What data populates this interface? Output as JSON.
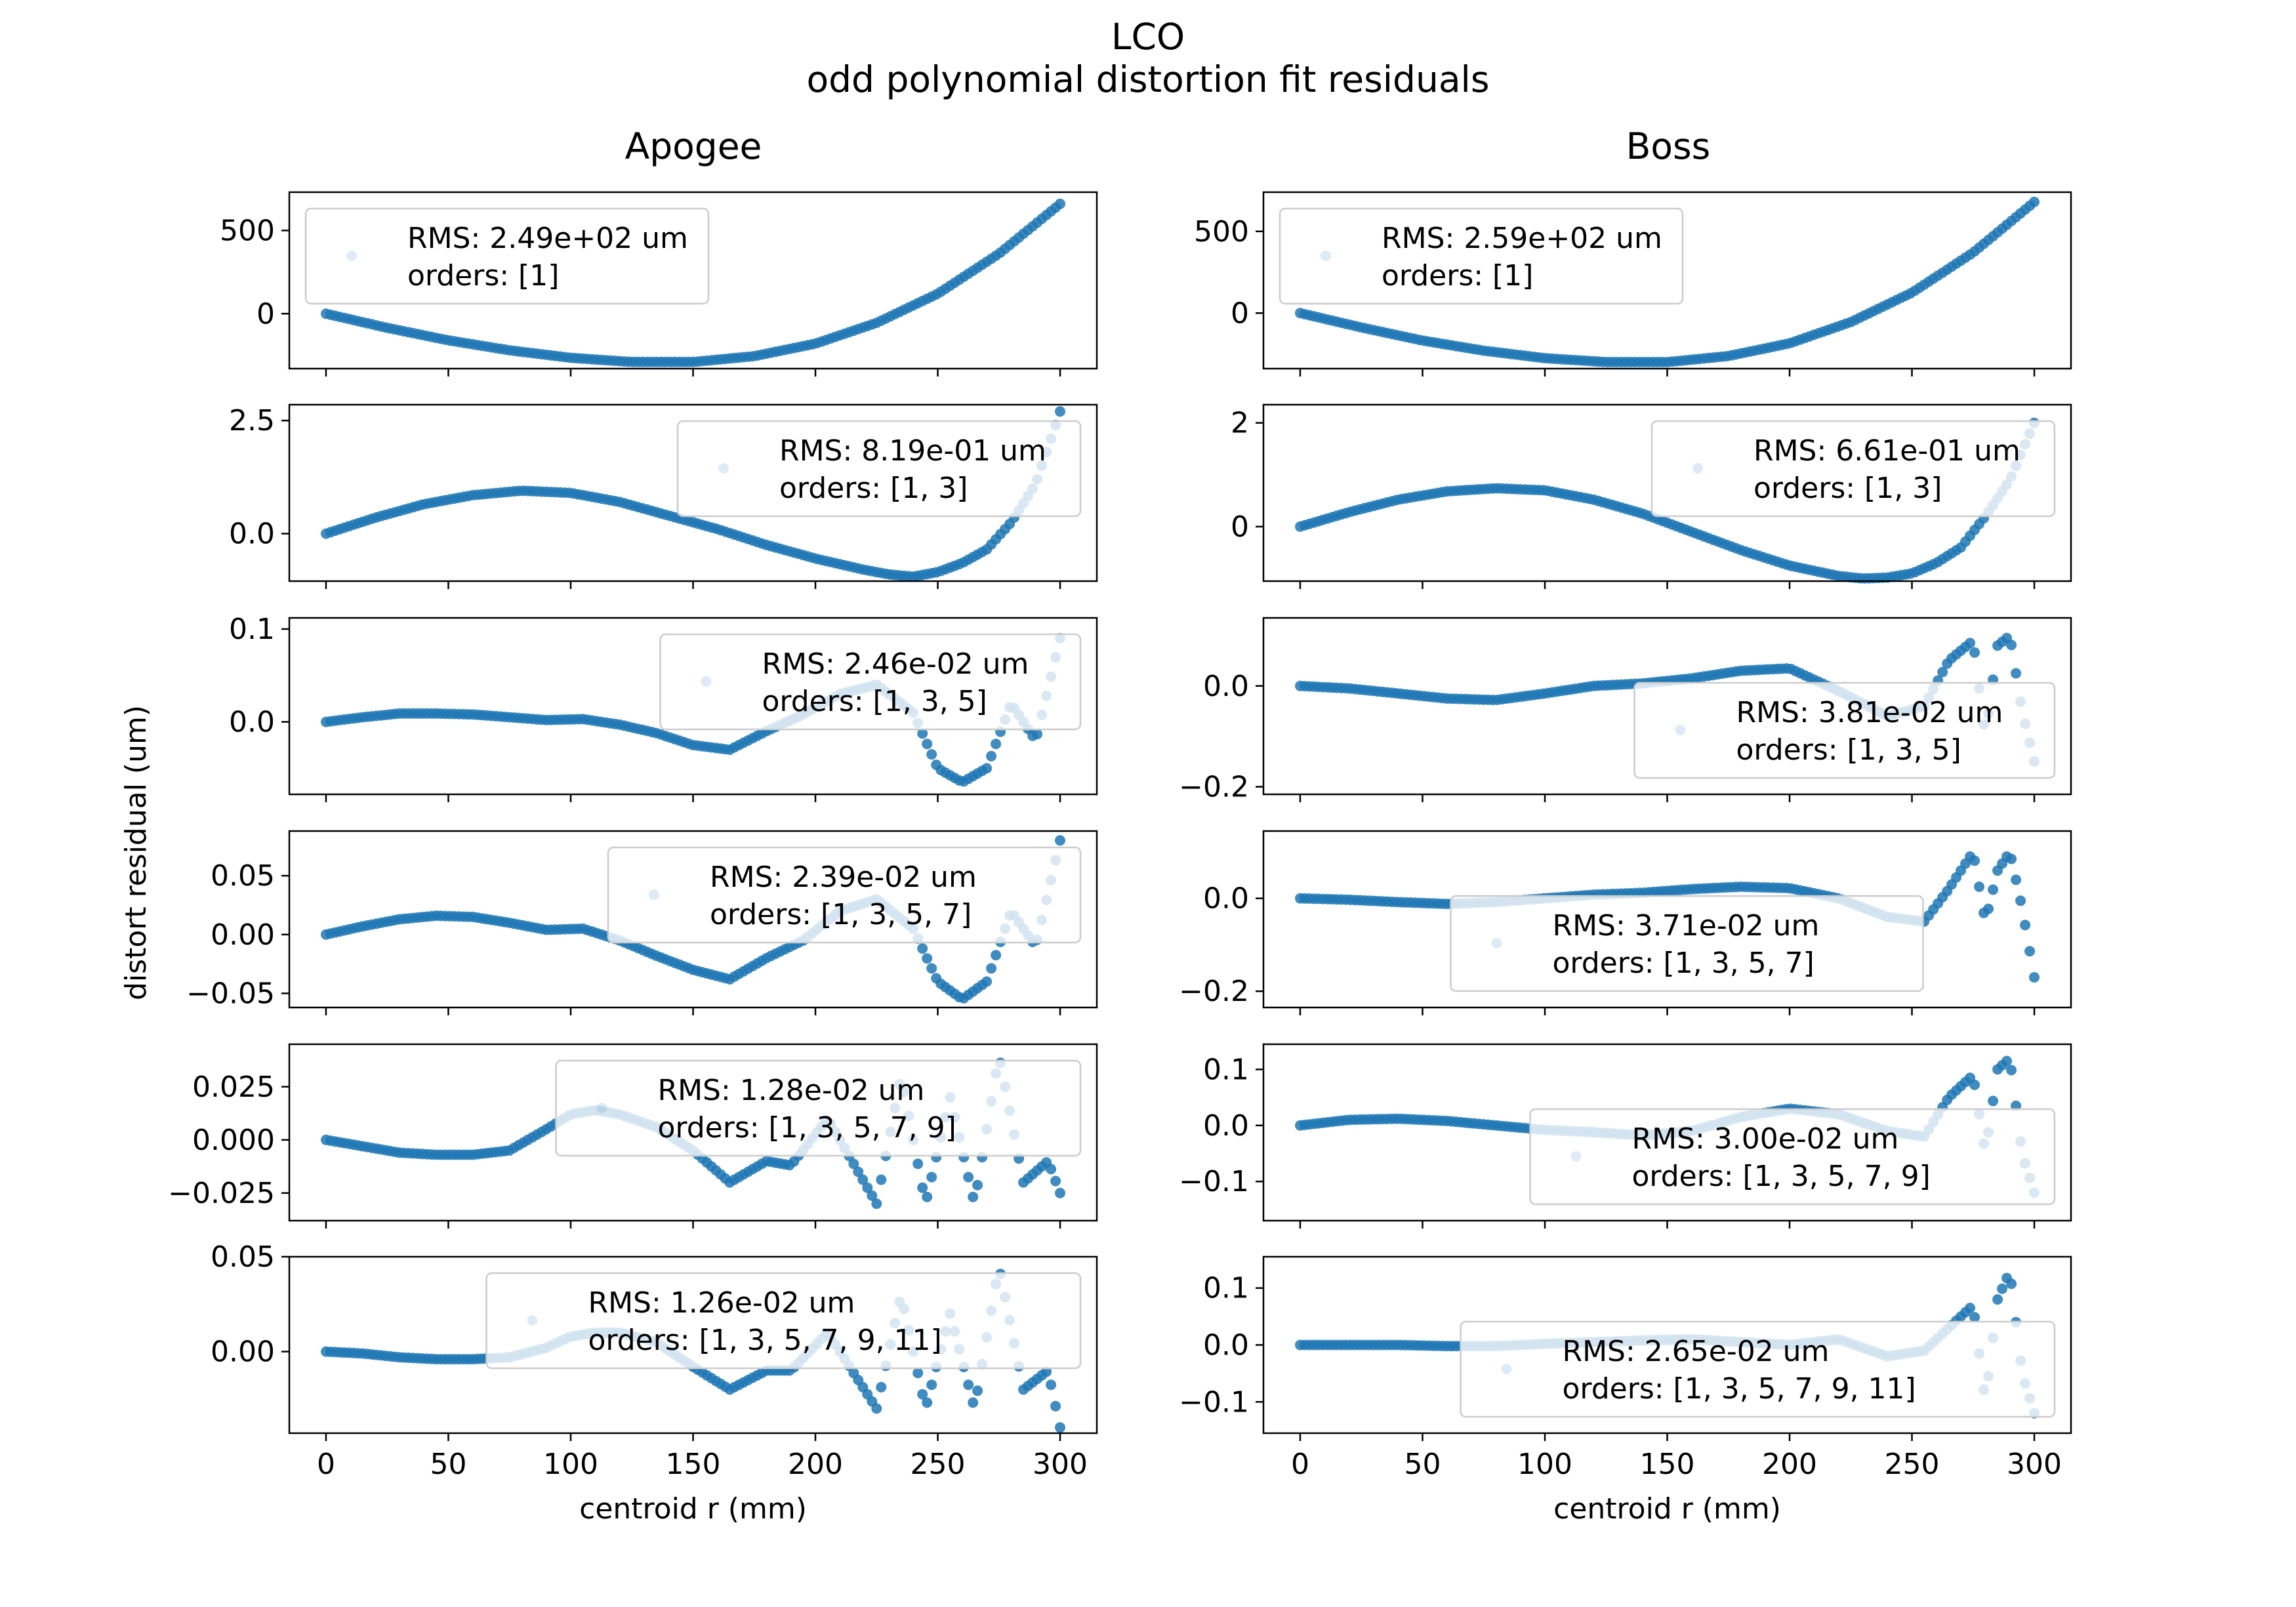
{
  "figure": {
    "title_line1": "LCO",
    "title_line2": "odd polynomial distortion fit residuals",
    "ylabel": "distort residual (um)",
    "series_color": "#1f77b4"
  },
  "chart_data": [
    {
      "type": "scatter",
      "column_title": "Apogee",
      "xlim": [
        -15,
        315
      ],
      "xticks": [
        0,
        50,
        100,
        150,
        200,
        250,
        300
      ],
      "xlabel": "",
      "ylim": [
        -330,
        730
      ],
      "yticks": [
        0,
        500
      ],
      "ytick_labels": [
        "0",
        "500"
      ],
      "legend": {
        "rms": "RMS: 2.49e+02 um",
        "orders": "orders: [1]",
        "loc": "upper-left"
      },
      "series": [
        {
          "x": [
            0,
            25,
            50,
            75,
            100,
            125,
            150,
            175,
            200,
            225,
            250,
            275,
            300
          ],
          "y": [
            0,
            -85,
            -160,
            -220,
            -265,
            -290,
            -290,
            -255,
            -180,
            -55,
            120,
            360,
            660
          ]
        }
      ]
    },
    {
      "type": "scatter",
      "column_title": "Boss",
      "xlim": [
        -15,
        315
      ],
      "xticks": [
        0,
        50,
        100,
        150,
        200,
        250,
        300
      ],
      "xlabel": "",
      "ylim": [
        -340,
        740
      ],
      "yticks": [
        0,
        500
      ],
      "ytick_labels": [
        "0",
        "500"
      ],
      "legend": {
        "rms": "RMS: 2.59e+02 um",
        "orders": "orders: [1]",
        "loc": "upper-left"
      },
      "series": [
        {
          "x": [
            0,
            25,
            50,
            75,
            100,
            125,
            150,
            175,
            200,
            225,
            250,
            275,
            300
          ],
          "y": [
            0,
            -88,
            -168,
            -230,
            -276,
            -300,
            -300,
            -263,
            -185,
            -55,
            125,
            370,
            680
          ]
        }
      ]
    },
    {
      "type": "scatter",
      "column_title": "",
      "xlim": [
        -15,
        315
      ],
      "xticks": [
        0,
        50,
        100,
        150,
        200,
        250,
        300
      ],
      "xlabel": "",
      "ylim": [
        -1.05,
        2.85
      ],
      "yticks": [
        0,
        2.5
      ],
      "ytick_labels": [
        "0.0",
        "2.5"
      ],
      "legend": {
        "rms": "RMS: 8.19e-01 um",
        "orders": "orders: [1, 3]",
        "loc": "upper-right"
      },
      "series": [
        {
          "x": [
            0,
            20,
            40,
            60,
            80,
            100,
            120,
            140,
            160,
            180,
            200,
            220,
            230,
            240,
            250,
            260,
            270,
            280,
            290,
            300
          ],
          "y": [
            0,
            0.35,
            0.65,
            0.85,
            0.95,
            0.9,
            0.7,
            0.4,
            0.1,
            -0.25,
            -0.55,
            -0.8,
            -0.9,
            -0.95,
            -0.85,
            -0.65,
            -0.35,
            0.25,
            1.1,
            2.7
          ]
        }
      ]
    },
    {
      "type": "scatter",
      "column_title": "",
      "xlim": [
        -15,
        315
      ],
      "xticks": [
        0,
        50,
        100,
        150,
        200,
        250,
        300
      ],
      "xlabel": "",
      "ylim": [
        -1.05,
        2.35
      ],
      "yticks": [
        0,
        2
      ],
      "ytick_labels": [
        "0",
        "2"
      ],
      "legend": {
        "rms": "RMS: 6.61e-01 um",
        "orders": "orders: [1, 3]",
        "loc": "upper-right"
      },
      "series": [
        {
          "x": [
            0,
            20,
            40,
            60,
            80,
            100,
            120,
            140,
            160,
            180,
            200,
            220,
            230,
            240,
            250,
            260,
            270,
            280,
            290,
            300
          ],
          "y": [
            0,
            0.28,
            0.52,
            0.68,
            0.74,
            0.7,
            0.52,
            0.25,
            -0.1,
            -0.45,
            -0.75,
            -0.95,
            -1.0,
            -0.98,
            -0.9,
            -0.7,
            -0.4,
            0.2,
            0.9,
            2.0
          ]
        }
      ]
    },
    {
      "type": "scatter",
      "column_title": "",
      "xlim": [
        -15,
        315
      ],
      "xticks": [
        0,
        50,
        100,
        150,
        200,
        250,
        300
      ],
      "xlabel": "",
      "ylim": [
        -0.078,
        0.112
      ],
      "yticks": [
        0,
        0.1
      ],
      "ytick_labels": [
        "0.0",
        "0.1"
      ],
      "legend": {
        "rms": "RMS: 2.46e-02 um",
        "orders": "orders: [1, 3, 5]",
        "loc": "upper-right"
      },
      "series": [
        {
          "x": [
            0,
            15,
            30,
            45,
            60,
            75,
            90,
            105,
            120,
            135,
            150,
            165,
            180,
            195,
            210,
            225,
            240,
            250,
            260,
            270,
            280,
            290,
            300
          ],
          "y": [
            0,
            0.005,
            0.009,
            0.009,
            0.008,
            0.005,
            0.002,
            0.003,
            -0.003,
            -0.012,
            -0.025,
            -0.03,
            -0.01,
            0.008,
            0.03,
            0.04,
            0.01,
            -0.05,
            -0.065,
            -0.05,
            0.02,
            -0.02,
            0.09
          ]
        }
      ]
    },
    {
      "type": "scatter",
      "column_title": "",
      "xlim": [
        -15,
        315
      ],
      "xticks": [
        0,
        50,
        100,
        150,
        200,
        250,
        300
      ],
      "xlabel": "",
      "ylim": [
        -0.215,
        0.135
      ],
      "yticks": [
        -0.2,
        0
      ],
      "ytick_labels": [
        "−0.2",
        "0.0"
      ],
      "legend": {
        "rms": "RMS: 3.81e-02 um",
        "orders": "orders: [1, 3, 5]",
        "loc": "lower-right"
      },
      "series": [
        {
          "x": [
            0,
            20,
            40,
            60,
            80,
            100,
            120,
            140,
            160,
            180,
            200,
            220,
            240,
            255,
            265,
            275,
            280,
            285,
            290,
            295,
            300
          ],
          "y": [
            0,
            -0.005,
            -0.015,
            -0.025,
            -0.028,
            -0.015,
            0.0,
            0.005,
            0.015,
            0.03,
            0.035,
            -0.01,
            -0.06,
            -0.04,
            0.05,
            0.09,
            -0.1,
            0.08,
            0.1,
            -0.05,
            -0.15
          ]
        }
      ]
    },
    {
      "type": "scatter",
      "column_title": "",
      "xlim": [
        -15,
        315
      ],
      "xticks": [
        0,
        50,
        100,
        150,
        200,
        250,
        300
      ],
      "xlabel": "",
      "ylim": [
        -0.062,
        0.088
      ],
      "yticks": [
        -0.05,
        0,
        0.05
      ],
      "ytick_labels": [
        "−0.05",
        "0.00",
        "0.05"
      ],
      "legend": {
        "rms": "RMS: 2.39e-02 um",
        "orders": "orders: [1, 3, 5, 7]",
        "loc": "upper-right"
      },
      "series": [
        {
          "x": [
            0,
            15,
            30,
            45,
            60,
            75,
            90,
            105,
            120,
            135,
            150,
            165,
            180,
            195,
            210,
            225,
            240,
            250,
            260,
            270,
            280,
            290,
            300
          ],
          "y": [
            0,
            0.007,
            0.013,
            0.016,
            0.015,
            0.01,
            0.004,
            0.005,
            -0.005,
            -0.018,
            -0.03,
            -0.038,
            -0.02,
            -0.005,
            0.02,
            0.03,
            0.005,
            -0.04,
            -0.055,
            -0.04,
            0.02,
            -0.01,
            0.08
          ]
        }
      ]
    },
    {
      "type": "scatter",
      "column_title": "",
      "xlim": [
        -15,
        315
      ],
      "xticks": [
        0,
        50,
        100,
        150,
        200,
        250,
        300
      ],
      "xlabel": "",
      "ylim": [
        -0.235,
        0.145
      ],
      "yticks": [
        -0.2,
        0
      ],
      "ytick_labels": [
        "−0.2",
        "0.0"
      ],
      "legend": {
        "rms": "RMS: 3.71e-02 um",
        "orders": "orders: [1, 3, 5, 7]",
        "loc": "lower-center"
      },
      "series": [
        {
          "x": [
            0,
            20,
            40,
            60,
            80,
            100,
            120,
            140,
            160,
            180,
            200,
            220,
            240,
            255,
            265,
            275,
            280,
            285,
            290,
            295,
            300
          ],
          "y": [
            0,
            -0.003,
            -0.008,
            -0.012,
            -0.008,
            0.0,
            0.008,
            0.012,
            0.02,
            0.025,
            0.022,
            0.0,
            -0.04,
            -0.05,
            0.02,
            0.1,
            -0.05,
            0.06,
            0.1,
            -0.02,
            -0.17
          ]
        }
      ]
    },
    {
      "type": "scatter",
      "column_title": "",
      "xlim": [
        -15,
        315
      ],
      "xticks": [
        0,
        50,
        100,
        150,
        200,
        250,
        300
      ],
      "xlabel": "",
      "ylim": [
        -0.038,
        0.045
      ],
      "yticks": [
        -0.025,
        0,
        0.025
      ],
      "ytick_labels": [
        "−0.025",
        "0.000",
        "0.025"
      ],
      "legend": {
        "rms": "RMS: 1.28e-02 um",
        "orders": "orders: [1, 3, 5, 7, 9]",
        "loc": "upper-right"
      },
      "series": [
        {
          "x": [
            0,
            15,
            30,
            45,
            60,
            75,
            90,
            100,
            110,
            120,
            135,
            150,
            165,
            180,
            190,
            205,
            225,
            235,
            245,
            255,
            265,
            275,
            285,
            295,
            300
          ],
          "y": [
            0,
            -0.003,
            -0.006,
            -0.007,
            -0.007,
            -0.005,
            0.005,
            0.012,
            0.014,
            0.012,
            0.006,
            -0.005,
            -0.02,
            -0.01,
            -0.012,
            0.01,
            -0.03,
            0.03,
            -0.03,
            0.02,
            -0.03,
            0.04,
            -0.02,
            -0.01,
            -0.025
          ]
        }
      ]
    },
    {
      "type": "scatter",
      "column_title": "",
      "xlim": [
        -15,
        315
      ],
      "xticks": [
        0,
        50,
        100,
        150,
        200,
        250,
        300
      ],
      "xlabel": "",
      "ylim": [
        -0.17,
        0.145
      ],
      "yticks": [
        -0.1,
        0,
        0.1
      ],
      "ytick_labels": [
        "−0.1",
        "0.0",
        "0.1"
      ],
      "legend": {
        "rms": "RMS: 3.00e-02 um",
        "orders": "orders: [1, 3, 5, 7, 9]",
        "loc": "lower-right"
      },
      "series": [
        {
          "x": [
            0,
            20,
            40,
            60,
            80,
            100,
            120,
            140,
            160,
            180,
            200,
            220,
            240,
            255,
            265,
            275,
            280,
            285,
            290,
            295,
            300
          ],
          "y": [
            0,
            0.01,
            0.012,
            0.008,
            0.0,
            -0.008,
            -0.012,
            -0.018,
            -0.01,
            0.015,
            0.03,
            0.02,
            -0.01,
            -0.02,
            0.05,
            0.09,
            -0.05,
            0.1,
            0.12,
            -0.05,
            -0.12
          ]
        }
      ]
    },
    {
      "type": "scatter",
      "column_title": "",
      "xlim": [
        -15,
        315
      ],
      "xticks": [
        0,
        50,
        100,
        150,
        200,
        250,
        300
      ],
      "xlabel": "centroid r (mm)",
      "ylim": [
        -0.043,
        0.05
      ],
      "yticks": [
        0,
        0.05
      ],
      "ytick_labels": [
        "0.00",
        "0.05"
      ],
      "legend": {
        "rms": "RMS: 1.26e-02 um",
        "orders": "orders: [1, 3, 5, 7, 9, 11]",
        "loc": "upper-right"
      },
      "series": [
        {
          "x": [
            0,
            15,
            30,
            45,
            60,
            75,
            90,
            100,
            110,
            120,
            135,
            150,
            165,
            180,
            190,
            205,
            225,
            235,
            245,
            255,
            265,
            275,
            285,
            295,
            300
          ],
          "y": [
            0,
            -0.001,
            -0.003,
            -0.004,
            -0.004,
            -0.003,
            0.002,
            0.008,
            0.01,
            0.01,
            0.005,
            -0.008,
            -0.02,
            -0.01,
            -0.01,
            0.01,
            -0.03,
            0.03,
            -0.03,
            0.02,
            -0.03,
            0.045,
            -0.02,
            -0.01,
            -0.04
          ]
        }
      ]
    },
    {
      "type": "scatter",
      "column_title": "",
      "xlim": [
        -15,
        315
      ],
      "xticks": [
        0,
        50,
        100,
        150,
        200,
        250,
        300
      ],
      "xlabel": "centroid r (mm)",
      "ylim": [
        -0.155,
        0.155
      ],
      "yticks": [
        -0.1,
        0,
        0.1
      ],
      "ytick_labels": [
        "−0.1",
        "0.0",
        "0.1"
      ],
      "legend": {
        "rms": "RMS: 2.65e-02 um",
        "orders": "orders: [1, 3, 5, 7, 9, 11]",
        "loc": "lower-right"
      },
      "series": [
        {
          "x": [
            0,
            20,
            40,
            60,
            80,
            100,
            120,
            140,
            160,
            180,
            200,
            220,
            240,
            255,
            265,
            275,
            280,
            285,
            290,
            295,
            300
          ],
          "y": [
            0,
            0.0,
            0.0,
            -0.002,
            -0.002,
            0.002,
            0.005,
            0.008,
            0.01,
            0.005,
            0.0,
            0.01,
            -0.02,
            -0.01,
            0.03,
            0.07,
            -0.1,
            0.08,
            0.13,
            -0.05,
            -0.12
          ]
        }
      ]
    }
  ]
}
